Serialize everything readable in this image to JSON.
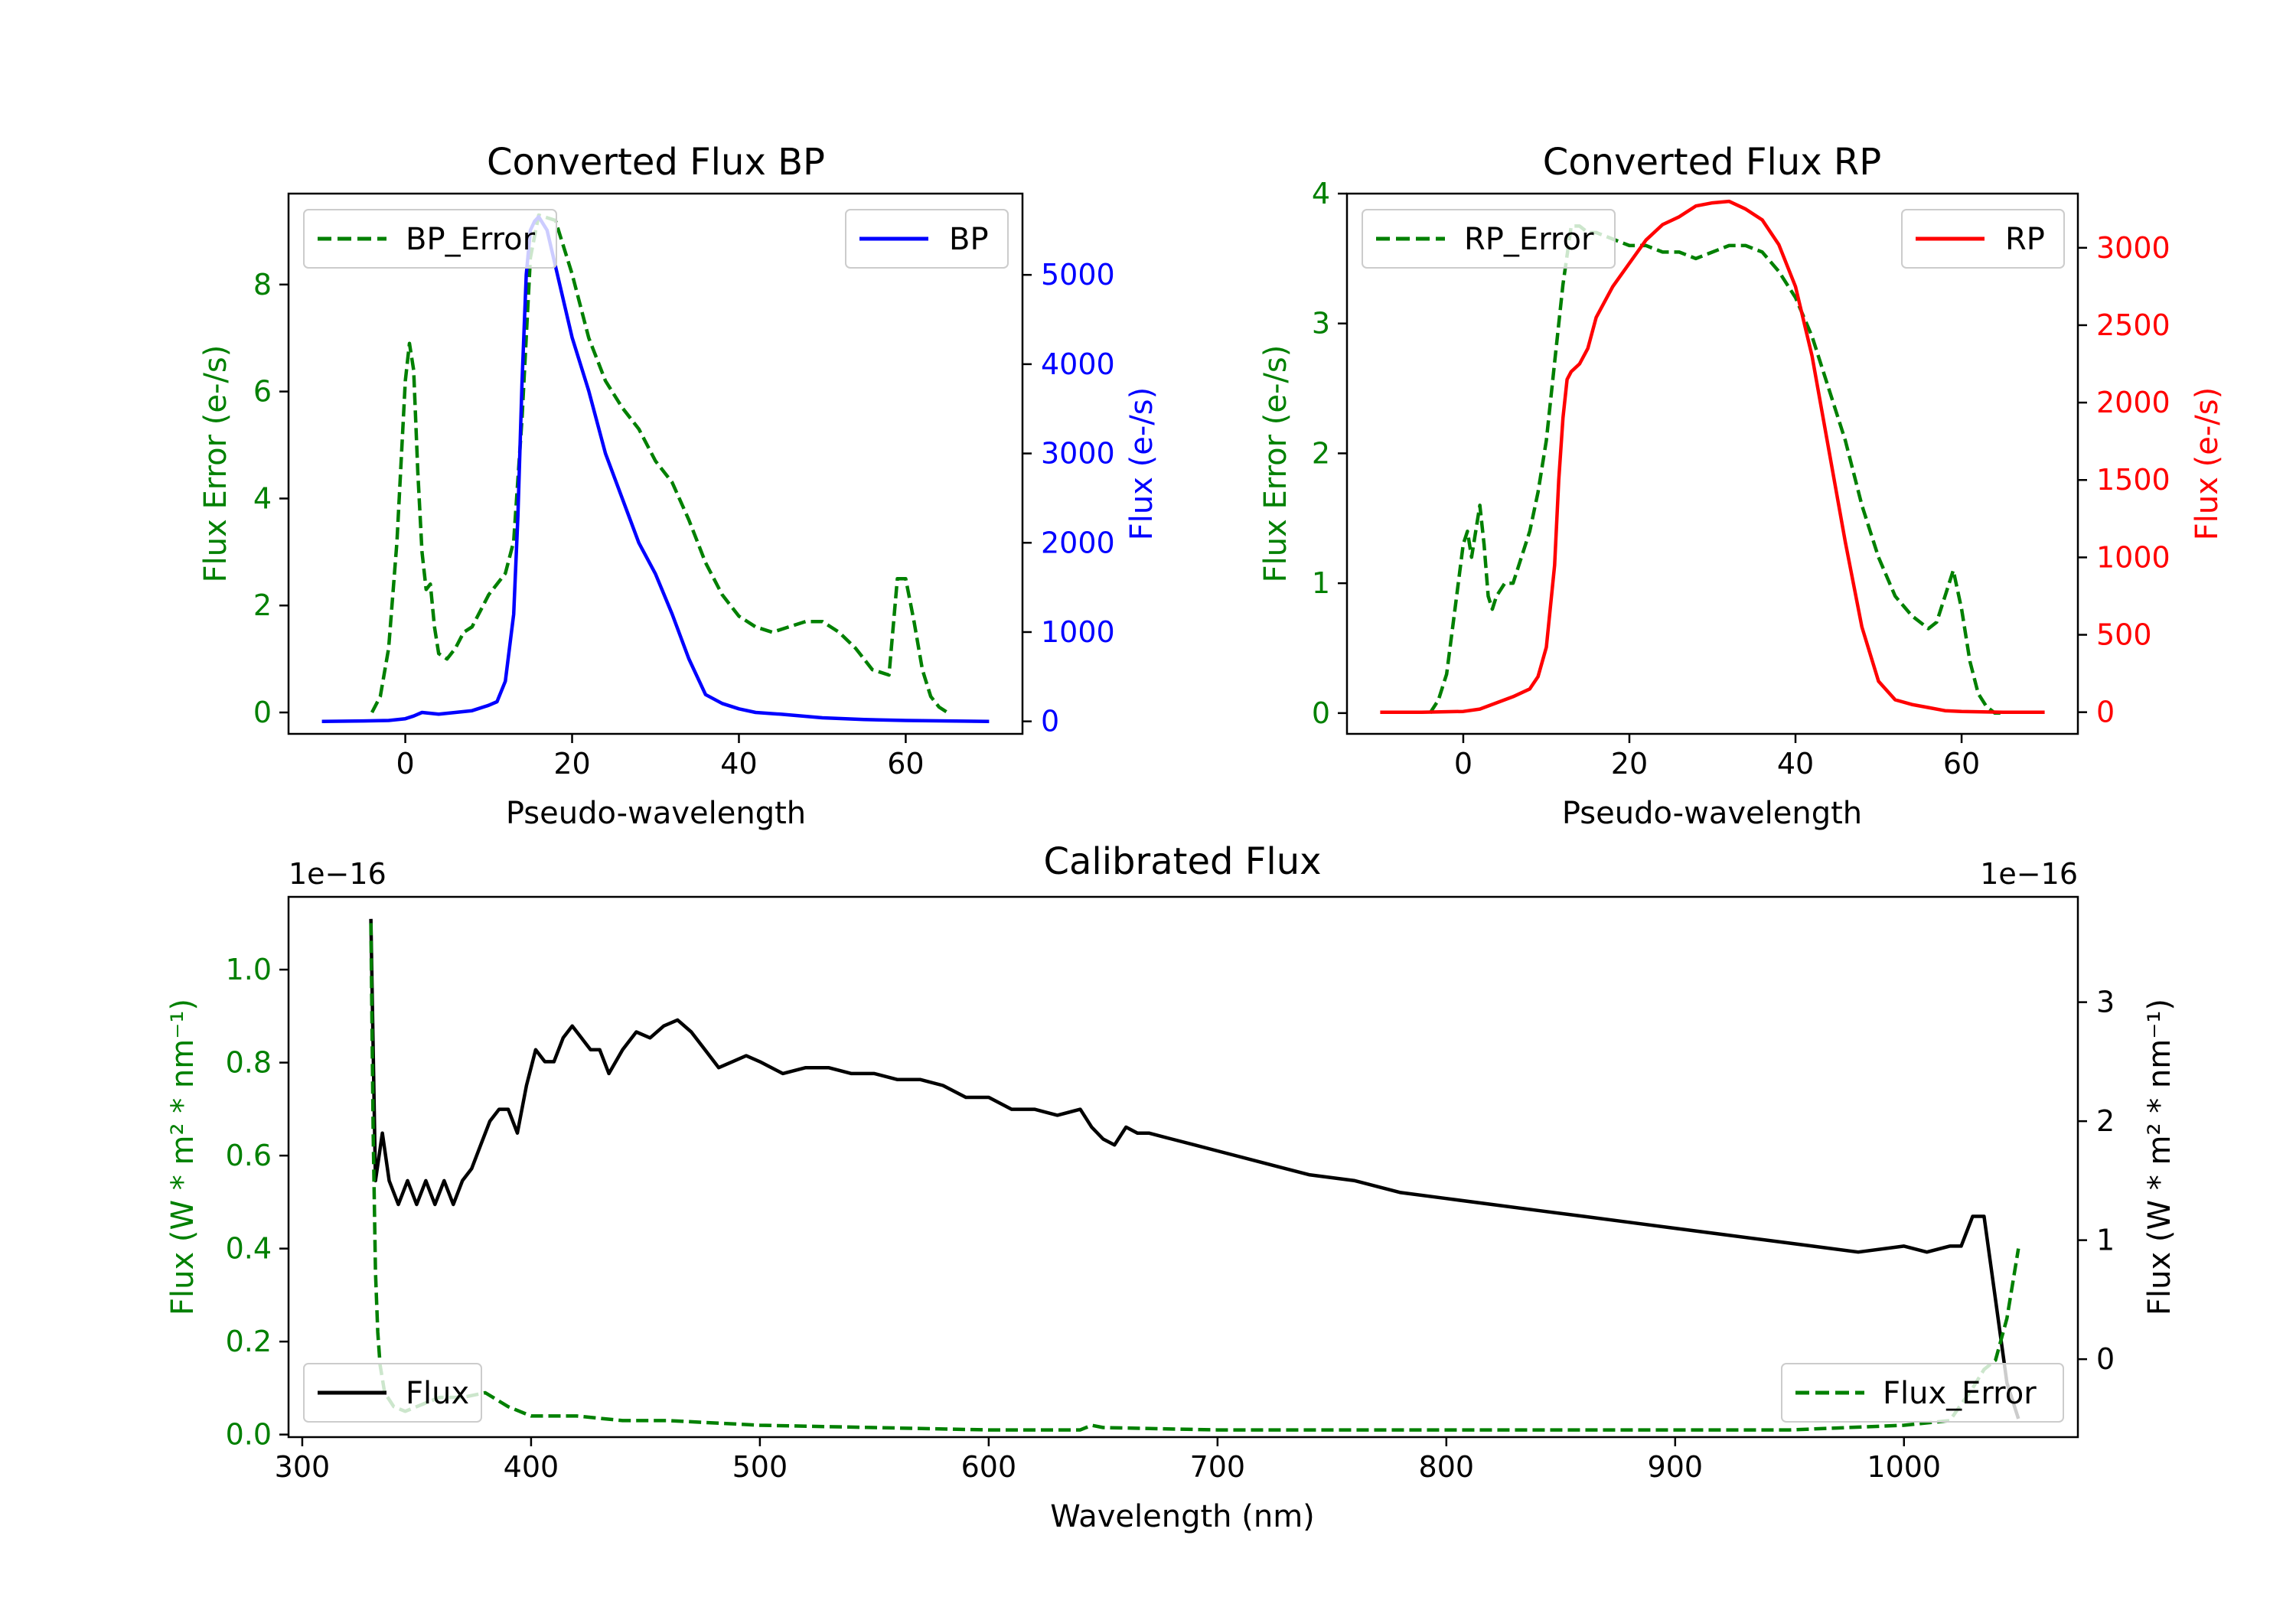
{
  "colors": {
    "green": "#008000",
    "blue": "#0000ff",
    "red": "#ff0000",
    "black": "#000000"
  },
  "chart_data": [
    {
      "type": "line",
      "title": "Converted Flux BP",
      "xlabel": "Pseudo-wavelength",
      "ylabel_left": "Flux Error (e-/s)",
      "ylabel_right": "Flux (e-/s)",
      "xlim": [
        -14,
        74
      ],
      "ylim_left": [
        -0.4,
        9.7
      ],
      "ylim_right": [
        -140,
        5910
      ],
      "xticks": [
        0,
        20,
        40,
        60
      ],
      "xtick_labels": [
        "0",
        "20",
        "40",
        "60"
      ],
      "yticks_left": [
        0,
        2,
        4,
        6,
        8
      ],
      "ytick_labels_left": [
        "0",
        "2",
        "4",
        "6",
        "8"
      ],
      "yticks_right": [
        0,
        1000,
        2000,
        3000,
        4000,
        5000
      ],
      "ytick_labels_right": [
        "0",
        "1000",
        "2000",
        "3000",
        "4000",
        "5000"
      ],
      "legend_left": {
        "label": "BP_Error",
        "placement": "upper-left"
      },
      "legend_right": {
        "label": "BP",
        "placement": "upper-right"
      },
      "series": [
        {
          "name": "BP_Error",
          "axis": "left",
          "style": "dashed",
          "color": "green",
          "x": [
            -4,
            -3,
            -2,
            -1,
            0,
            0.5,
            1,
            1.5,
            2,
            2.5,
            3,
            3.5,
            4,
            5,
            6,
            7,
            8,
            10,
            12,
            13,
            14,
            15,
            16,
            18,
            20,
            22,
            24,
            26,
            28,
            30,
            32,
            34,
            36,
            38,
            40,
            42,
            44,
            46,
            48,
            50,
            52,
            54,
            56,
            58,
            59,
            60,
            61,
            62,
            63,
            64,
            65
          ],
          "values": [
            0,
            0.3,
            1.2,
            3.2,
            6.2,
            6.9,
            6.4,
            4.5,
            3.0,
            2.3,
            2.4,
            1.6,
            1.1,
            1.0,
            1.2,
            1.5,
            1.6,
            2.2,
            2.6,
            3.2,
            5.5,
            8.5,
            9.3,
            9.2,
            8.2,
            7.0,
            6.2,
            5.7,
            5.3,
            4.7,
            4.3,
            3.6,
            2.8,
            2.2,
            1.8,
            1.6,
            1.5,
            1.6,
            1.7,
            1.7,
            1.5,
            1.2,
            0.8,
            0.7,
            2.5,
            2.5,
            1.7,
            0.8,
            0.3,
            0.1,
            0
          ]
        },
        {
          "name": "BP",
          "axis": "right",
          "style": "solid",
          "color": "blue",
          "x": [
            -10,
            -5,
            -2,
            0,
            1,
            2,
            4,
            6,
            8,
            10,
            11,
            12,
            13,
            13.5,
            14,
            14.5,
            15,
            15.5,
            16,
            17,
            18,
            19,
            20,
            22,
            24,
            26,
            28,
            30,
            32,
            34,
            36,
            38,
            40,
            42,
            45,
            50,
            55,
            60,
            65,
            70
          ],
          "values": [
            0,
            5,
            10,
            30,
            60,
            100,
            80,
            100,
            120,
            180,
            220,
            450,
            1200,
            2300,
            3800,
            5000,
            5500,
            5600,
            5650,
            5500,
            5100,
            4700,
            4300,
            3700,
            3000,
            2500,
            2000,
            1650,
            1200,
            700,
            300,
            200,
            140,
            100,
            80,
            40,
            20,
            10,
            5,
            0
          ]
        }
      ]
    },
    {
      "type": "line",
      "title": "Converted Flux RP",
      "xlabel": "Pseudo-wavelength",
      "ylabel_left": "Flux Error (e-/s)",
      "ylabel_right": "Flux (e-/s)",
      "xlim": [
        -14,
        74
      ],
      "ylim_left": [
        -0.16,
        4.0
      ],
      "ylim_right": [
        -140,
        3350
      ],
      "xticks": [
        0,
        20,
        40,
        60
      ],
      "xtick_labels": [
        "0",
        "20",
        "40",
        "60"
      ],
      "yticks_left": [
        0,
        1,
        2,
        3,
        4
      ],
      "ytick_labels_left": [
        "0",
        "1",
        "2",
        "3",
        "4"
      ],
      "yticks_right": [
        0,
        500,
        1000,
        1500,
        2000,
        2500,
        3000
      ],
      "ytick_labels_right": [
        "0",
        "500",
        "1000",
        "1500",
        "2000",
        "2500",
        "3000"
      ],
      "legend_left": {
        "label": "RP_Error",
        "placement": "upper-left"
      },
      "legend_right": {
        "label": "RP",
        "placement": "upper-right"
      },
      "series": [
        {
          "name": "RP_Error",
          "axis": "left",
          "style": "dashed",
          "color": "green",
          "x": [
            -4,
            -3,
            -2,
            -1,
            0,
            0.5,
            1,
            1.5,
            2,
            2.5,
            3,
            3.5,
            4,
            5,
            6,
            7,
            8,
            9,
            10,
            11,
            12,
            13,
            14,
            15,
            16,
            18,
            20,
            22,
            24,
            26,
            28,
            30,
            32,
            34,
            36,
            38,
            40,
            42,
            44,
            46,
            48,
            50,
            52,
            54,
            55,
            56,
            57,
            58,
            59,
            60,
            61,
            62,
            63,
            64,
            65
          ],
          "values": [
            0,
            0.1,
            0.3,
            0.8,
            1.3,
            1.4,
            1.2,
            1.4,
            1.6,
            1.3,
            0.9,
            0.8,
            0.9,
            1.0,
            1.0,
            1.2,
            1.4,
            1.7,
            2.1,
            2.7,
            3.3,
            3.75,
            3.75,
            3.7,
            3.7,
            3.65,
            3.6,
            3.6,
            3.55,
            3.55,
            3.5,
            3.55,
            3.6,
            3.6,
            3.55,
            3.4,
            3.2,
            2.9,
            2.5,
            2.1,
            1.6,
            1.2,
            0.9,
            0.75,
            0.7,
            0.65,
            0.7,
            0.9,
            1.1,
            0.8,
            0.4,
            0.15,
            0.05,
            0,
            0
          ]
        },
        {
          "name": "RP",
          "axis": "right",
          "style": "solid",
          "color": "red",
          "x": [
            -10,
            -5,
            0,
            2,
            4,
            6,
            8,
            9,
            10,
            11,
            11.5,
            12,
            12.5,
            13,
            14,
            15,
            16,
            18,
            20,
            22,
            24,
            26,
            28,
            30,
            32,
            34,
            36,
            38,
            40,
            42,
            44,
            46,
            48,
            50,
            52,
            54,
            56,
            58,
            60,
            65,
            70
          ],
          "values": [
            0,
            0,
            5,
            20,
            60,
            100,
            150,
            230,
            420,
            950,
            1500,
            1900,
            2150,
            2200,
            2250,
            2350,
            2550,
            2750,
            2900,
            3050,
            3150,
            3200,
            3270,
            3290,
            3300,
            3250,
            3180,
            3020,
            2750,
            2300,
            1700,
            1100,
            550,
            200,
            80,
            50,
            30,
            10,
            5,
            0,
            0
          ]
        }
      ]
    },
    {
      "type": "line",
      "title": "Calibrated Flux",
      "xlabel": "Wavelength (nm)",
      "ylabel_left": "Flux (W * m² * nm⁻¹)",
      "ylabel_right": "Flux (W * m² * nm⁻¹)",
      "offset_left": "1e−16",
      "offset_right": "1e−16",
      "xlim": [
        294,
        1076
      ],
      "ylim_left": [
        -0.0055,
        1.1565
      ],
      "ylim_right": [
        -0.655,
        3.885
      ],
      "xticks": [
        300,
        400,
        500,
        600,
        700,
        800,
        900,
        1000
      ],
      "xtick_labels": [
        "300",
        "400",
        "500",
        "600",
        "700",
        "800",
        "900",
        "1000"
      ],
      "yticks_left": [
        0.0,
        0.2,
        0.4,
        0.6,
        0.8,
        1.0
      ],
      "ytick_labels_left": [
        "0.0",
        "0.2",
        "0.4",
        "0.6",
        "0.8",
        "1.0"
      ],
      "yticks_right": [
        0,
        1,
        2,
        3
      ],
      "ytick_labels_right": [
        "0",
        "1",
        "2",
        "3"
      ],
      "legend_left": {
        "label": "Flux",
        "placement": "lower-left"
      },
      "legend_right": {
        "label": "Flux_Error",
        "placement": "lower-right"
      },
      "series": [
        {
          "name": "Flux",
          "axis": "right",
          "style": "solid",
          "color": "black",
          "x": [
            330,
            332,
            335,
            338,
            342,
            346,
            350,
            354,
            358,
            362,
            366,
            370,
            374,
            378,
            382,
            386,
            390,
            394,
            398,
            402,
            406,
            410,
            414,
            418,
            422,
            426,
            430,
            434,
            440,
            446,
            452,
            458,
            464,
            470,
            476,
            482,
            488,
            494,
            500,
            510,
            520,
            530,
            540,
            550,
            560,
            570,
            580,
            590,
            600,
            610,
            620,
            630,
            640,
            645,
            650,
            655,
            660,
            665,
            670,
            680,
            690,
            700,
            720,
            740,
            760,
            780,
            800,
            820,
            840,
            860,
            880,
            900,
            920,
            940,
            960,
            980,
            1000,
            1010,
            1020,
            1025,
            1030,
            1035,
            1040,
            1045,
            1050
          ],
          "values": [
            3.7,
            1.5,
            1.9,
            1.5,
            1.3,
            1.5,
            1.3,
            1.5,
            1.3,
            1.5,
            1.3,
            1.5,
            1.6,
            1.8,
            2.0,
            2.1,
            2.1,
            1.9,
            2.3,
            2.6,
            2.5,
            2.5,
            2.7,
            2.8,
            2.7,
            2.6,
            2.6,
            2.4,
            2.6,
            2.75,
            2.7,
            2.8,
            2.85,
            2.75,
            2.6,
            2.45,
            2.5,
            2.55,
            2.5,
            2.4,
            2.45,
            2.45,
            2.4,
            2.4,
            2.35,
            2.35,
            2.3,
            2.2,
            2.2,
            2.1,
            2.1,
            2.05,
            2.1,
            1.95,
            1.85,
            1.8,
            1.95,
            1.9,
            1.9,
            1.85,
            1.8,
            1.75,
            1.65,
            1.55,
            1.5,
            1.4,
            1.35,
            1.3,
            1.25,
            1.2,
            1.15,
            1.1,
            1.05,
            1.0,
            0.95,
            0.9,
            0.95,
            0.9,
            0.95,
            0.95,
            1.2,
            1.2,
            0.5,
            -0.2,
            -0.5
          ]
        },
        {
          "name": "Flux_Error",
          "axis": "left",
          "style": "dashed",
          "color": "green",
          "x": [
            330,
            331,
            332,
            333,
            334,
            336,
            340,
            345,
            350,
            360,
            370,
            380,
            390,
            400,
            420,
            440,
            460,
            500,
            550,
            600,
            640,
            645,
            650,
            700,
            750,
            800,
            850,
            900,
            950,
            1000,
            1020,
            1030,
            1035,
            1040,
            1045,
            1050
          ],
          "values": [
            1.1,
            0.65,
            0.35,
            0.22,
            0.15,
            0.09,
            0.06,
            0.05,
            0.06,
            0.08,
            0.08,
            0.09,
            0.06,
            0.04,
            0.04,
            0.03,
            0.03,
            0.02,
            0.015,
            0.01,
            0.01,
            0.02,
            0.015,
            0.01,
            0.01,
            0.01,
            0.01,
            0.01,
            0.01,
            0.02,
            0.03,
            0.1,
            0.14,
            0.16,
            0.25,
            0.4
          ]
        }
      ]
    }
  ]
}
